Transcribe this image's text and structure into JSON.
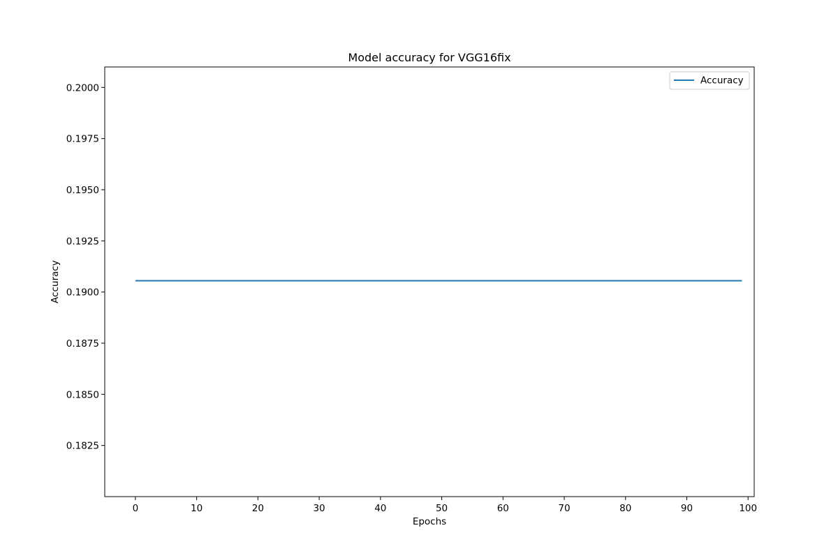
{
  "chart_data": {
    "type": "line",
    "title": "Model accuracy for VGG16fix",
    "xlabel": "Epochs",
    "ylabel": "Accuracy",
    "xlim": [
      -5,
      101
    ],
    "ylim": [
      0.18,
      0.201
    ],
    "xticks": [
      0,
      10,
      20,
      30,
      40,
      50,
      60,
      70,
      80,
      90,
      100
    ],
    "xtick_labels": [
      "0",
      "10",
      "20",
      "30",
      "40",
      "50",
      "60",
      "70",
      "80",
      "90",
      "100"
    ],
    "yticks": [
      0.1825,
      0.185,
      0.1875,
      0.19,
      0.1925,
      0.195,
      0.1975,
      0.2
    ],
    "ytick_labels": [
      "0.1825",
      "0.1850",
      "0.1875",
      "0.1900",
      "0.1925",
      "0.1950",
      "0.1975",
      "0.2000"
    ],
    "grid": false,
    "legend_position": "top-right",
    "series": [
      {
        "name": "Accuracy",
        "color": "#1f77b4",
        "x_start": 0,
        "x_end": 99,
        "constant_value": 0.19055
      }
    ]
  }
}
